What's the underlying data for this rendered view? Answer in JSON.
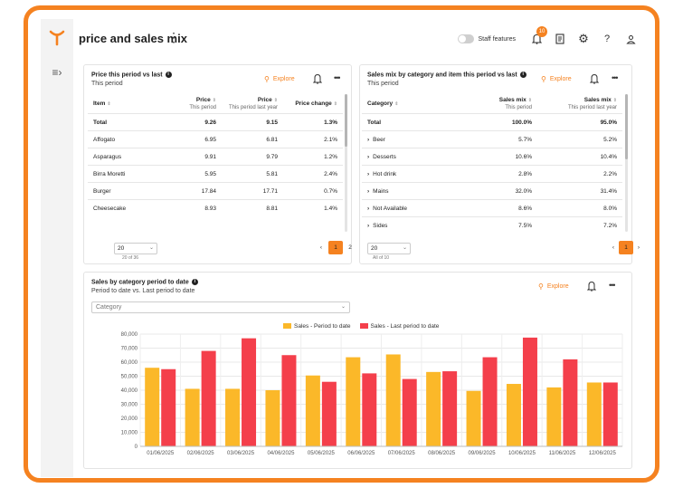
{
  "header": {
    "title": "price and sales mix",
    "staff_features_label": "Staff features",
    "notification_count": "10"
  },
  "colors": {
    "accent": "#f58220",
    "series1": "#fbb829",
    "series2": "#f43f4b"
  },
  "price_card": {
    "title": "Price this period vs last",
    "subtitle": "This period",
    "explore_label": "Explore",
    "columns": [
      {
        "label": "Item",
        "sub": ""
      },
      {
        "label": "Price",
        "sub": "This period"
      },
      {
        "label": "Price",
        "sub": "This period last year"
      },
      {
        "label": "Price change",
        "sub": ""
      }
    ],
    "rows": [
      [
        "Total",
        "9.26",
        "9.15",
        "1.3%"
      ],
      [
        "Affogato",
        "6.95",
        "6.81",
        "2.1%"
      ],
      [
        "Asparagus",
        "9.91",
        "9.79",
        "1.2%"
      ],
      [
        "Birra Moretti",
        "5.95",
        "5.81",
        "2.4%"
      ],
      [
        "Burger",
        "17.84",
        "17.71",
        "0.7%"
      ],
      [
        "Cheesecake",
        "8.93",
        "8.81",
        "1.4%"
      ]
    ],
    "page_size": "20",
    "count_text": "20 of 36",
    "pages": [
      "1",
      "2"
    ],
    "current_page": "1"
  },
  "mix_card": {
    "title": "Sales mix by category and item this period vs last",
    "subtitle": "This period",
    "explore_label": "Explore",
    "columns": [
      {
        "label": "Category",
        "sub": ""
      },
      {
        "label": "Sales mix",
        "sub": "This period"
      },
      {
        "label": "Sales mix",
        "sub": "This period last year"
      }
    ],
    "rows": [
      [
        "Total",
        "100.0%",
        "95.0%"
      ],
      [
        "Beer",
        "5.7%",
        "5.2%"
      ],
      [
        "Desserts",
        "10.6%",
        "10.4%"
      ],
      [
        "Hot drink",
        "2.8%",
        "2.2%"
      ],
      [
        "Mains",
        "32.0%",
        "31.4%"
      ],
      [
        "Not Available",
        "8.6%",
        "8.0%"
      ],
      [
        "Sides",
        "7.5%",
        "7.2%"
      ]
    ],
    "page_size": "20",
    "count_text": "All of 10",
    "pages": [
      "1"
    ],
    "current_page": "1"
  },
  "sales_card": {
    "title": "Sales by category period to date",
    "subtitle": "Period to date vs. Last period to date",
    "explore_label": "Explore",
    "category_placeholder": "Category"
  },
  "chart_data": {
    "type": "bar",
    "title": "Sales by category period to date",
    "categories": [
      "01/06/2025",
      "02/06/2025",
      "03/06/2025",
      "04/06/2025",
      "05/06/2025",
      "06/06/2025",
      "07/06/2025",
      "08/06/2025",
      "09/06/2025",
      "10/06/2025",
      "11/06/2025",
      "12/06/2025"
    ],
    "series": [
      {
        "name": "Sales - Period to date",
        "values": [
          56000,
          41000,
          41000,
          40000,
          50500,
          63500,
          65500,
          53000,
          39500,
          44500,
          42000,
          45500
        ]
      },
      {
        "name": "Sales - Last period to date",
        "values": [
          55000,
          68000,
          77000,
          65000,
          46000,
          52000,
          48000,
          53500,
          63500,
          77500,
          62000,
          45500
        ]
      }
    ],
    "yticks": [
      "0",
      "10,000",
      "20,000",
      "30,000",
      "40,000",
      "50,000",
      "60,000",
      "70,000",
      "80,000"
    ],
    "ylim": [
      0,
      80000
    ],
    "legend_position": "top"
  }
}
